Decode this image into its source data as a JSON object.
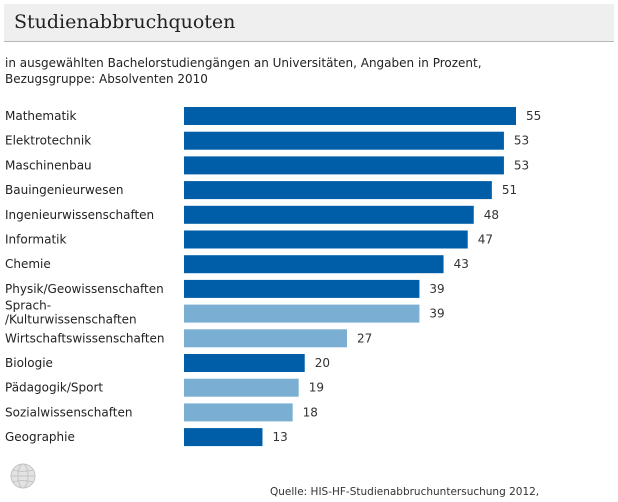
{
  "title": "Studienabbruchquoten",
  "subtitle": "in ausgewählten Bachelorstudiengängen an Universitäten, Angaben in Prozent, Bezugsgruppe: Absolventen 2010",
  "source": "Quelle: HIS-HF-Studienabbruchuntersuchung 2012,",
  "colors": {
    "dark": "#005ea8",
    "light": "#7aafd3",
    "globe": "#cfcfcf"
  },
  "icon": "globe-icon",
  "chart_data": {
    "type": "bar",
    "orientation": "horizontal",
    "xlim": [
      0,
      55
    ],
    "grid": false,
    "categories": [
      "Mathematik",
      "Elektrotechnik",
      "Maschinenbau",
      "Bauingenieurwesen",
      "Ingenieurwissenschaften",
      "Informatik",
      "Chemie",
      "Physik/Geowissenschaften",
      "Sprach-\n/Kulturwissenschaften",
      "Wirtschaftswissenschaften",
      "Biologie",
      "Pädagogik/Sport",
      "Sozialwissenschaften",
      "Geographie"
    ],
    "values": [
      55,
      53,
      53,
      51,
      48,
      47,
      43,
      39,
      39,
      27,
      20,
      19,
      18,
      13
    ],
    "shade": [
      "dark",
      "dark",
      "dark",
      "dark",
      "dark",
      "dark",
      "dark",
      "dark",
      "light",
      "light",
      "dark",
      "light",
      "light",
      "dark"
    ]
  }
}
